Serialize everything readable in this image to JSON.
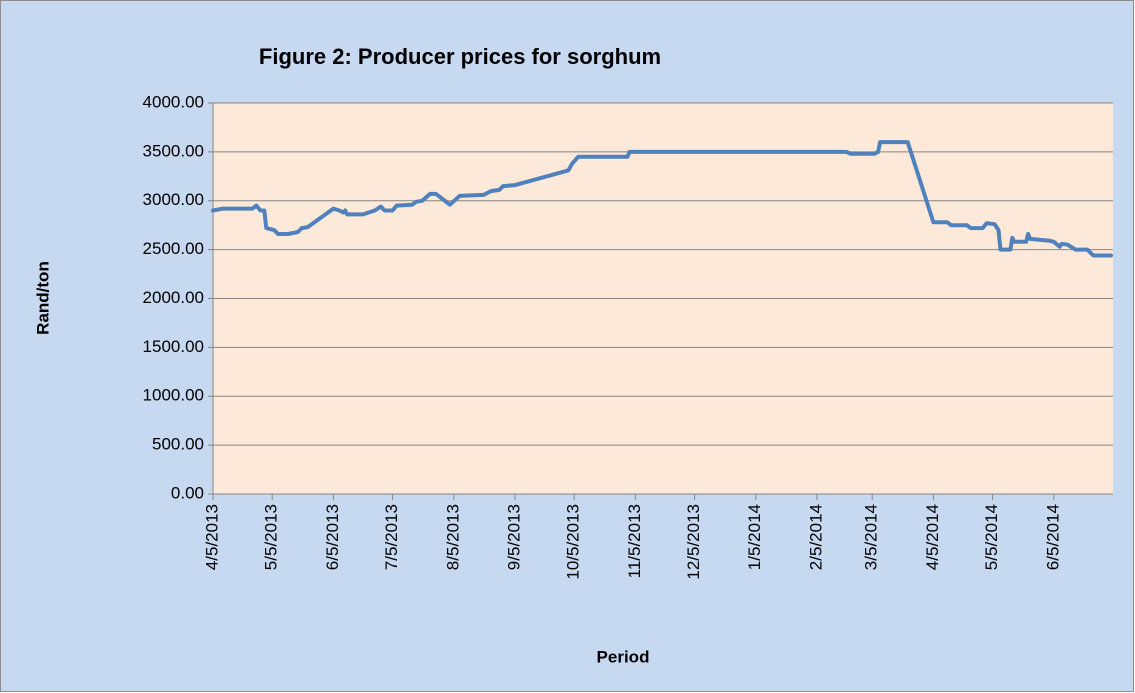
{
  "chart_data": {
    "type": "line",
    "title": "Figure 2: Producer prices for sorghum",
    "y_label": "Rand/ton",
    "x_label": "Period",
    "color": "#4f81bd",
    "x": [
      "4/5/2013",
      "4/10/2013",
      "4/25/2013",
      "4/27/2013",
      "4/29/2013",
      "5/1/2013",
      "5/2/2013",
      "5/6/2013",
      "5/8/2013",
      "5/13/2013",
      "5/18/2013",
      "5/20/2013",
      "5/23/2013",
      "6/5/2013",
      "6/8/2013",
      "6/10/2013",
      "6/11/2013",
      "6/12/2013",
      "6/20/2013",
      "6/26/2013",
      "6/29/2013",
      "7/1/2013",
      "7/5/2013",
      "7/7/2013",
      "7/15/2013",
      "7/17/2013",
      "7/20/2013",
      "7/24/2013",
      "7/27/2013",
      "8/3/2013",
      "8/8/2013",
      "8/20/2013",
      "8/24/2013",
      "8/28/2013",
      "8/30/2013",
      "9/5/2013",
      "10/2/2013",
      "10/4/2013",
      "10/7/2013",
      "11/1/2013",
      "11/2/2013",
      "2/20/2014",
      "2/22/2014",
      "3/6/2014",
      "3/8/2014",
      "3/9/2014",
      "3/23/2014",
      "4/5/2014",
      "4/12/2014",
      "4/14/2014",
      "4/22/2014",
      "4/24/2014",
      "4/30/2014",
      "5/2/2014",
      "5/6/2014",
      "5/8/2014",
      "5/9/2014",
      "5/14/2014",
      "5/15/2014",
      "5/16/2014",
      "5/22/2014",
      "5/23/2014",
      "5/24/2014",
      "6/3/2014",
      "6/5/2014",
      "6/8/2014",
      "6/9/2014",
      "6/12/2014",
      "6/16/2014",
      "6/22/2014",
      "6/25/2014",
      "7/4/2014"
    ],
    "values": [
      2900,
      2920,
      2920,
      2950,
      2900,
      2900,
      2720,
      2700,
      2660,
      2660,
      2680,
      2720,
      2730,
      2920,
      2900,
      2880,
      2900,
      2860,
      2860,
      2900,
      2940,
      2900,
      2900,
      2950,
      2960,
      2990,
      3000,
      3070,
      3070,
      2960,
      3050,
      3060,
      3100,
      3110,
      3150,
      3160,
      3310,
      3380,
      3450,
      3450,
      3500,
      3500,
      3480,
      3480,
      3500,
      3600,
      3600,
      2780,
      2780,
      2750,
      2750,
      2720,
      2720,
      2770,
      2760,
      2700,
      2500,
      2500,
      2620,
      2580,
      2580,
      2660,
      2610,
      2590,
      2580,
      2530,
      2560,
      2550,
      2500,
      2500,
      2440,
      2440
    ],
    "xlim": [
      "4/5/2013",
      "7/5/2014"
    ],
    "xticks": [
      "4/5/2013",
      "5/5/2013",
      "6/5/2013",
      "7/5/2013",
      "8/5/2013",
      "9/5/2013",
      "10/5/2013",
      "11/5/2013",
      "12/5/2013",
      "1/5/2014",
      "2/5/2014",
      "3/5/2014",
      "4/5/2014",
      "5/5/2014",
      "6/5/2014"
    ],
    "ylim": [
      0,
      4000
    ],
    "yticks": [
      {
        "value": 0,
        "label": "0.00"
      },
      {
        "value": 500,
        "label": "500.00"
      },
      {
        "value": 1000,
        "label": "1000.00"
      },
      {
        "value": 1500,
        "label": "1500.00"
      },
      {
        "value": 2000,
        "label": "2000.00"
      },
      {
        "value": 2500,
        "label": "2500.00"
      },
      {
        "value": 3000,
        "label": "3000.00"
      },
      {
        "value": 3500,
        "label": "3500.00"
      },
      {
        "value": 4000,
        "label": "4000.00"
      }
    ],
    "grid": true
  }
}
